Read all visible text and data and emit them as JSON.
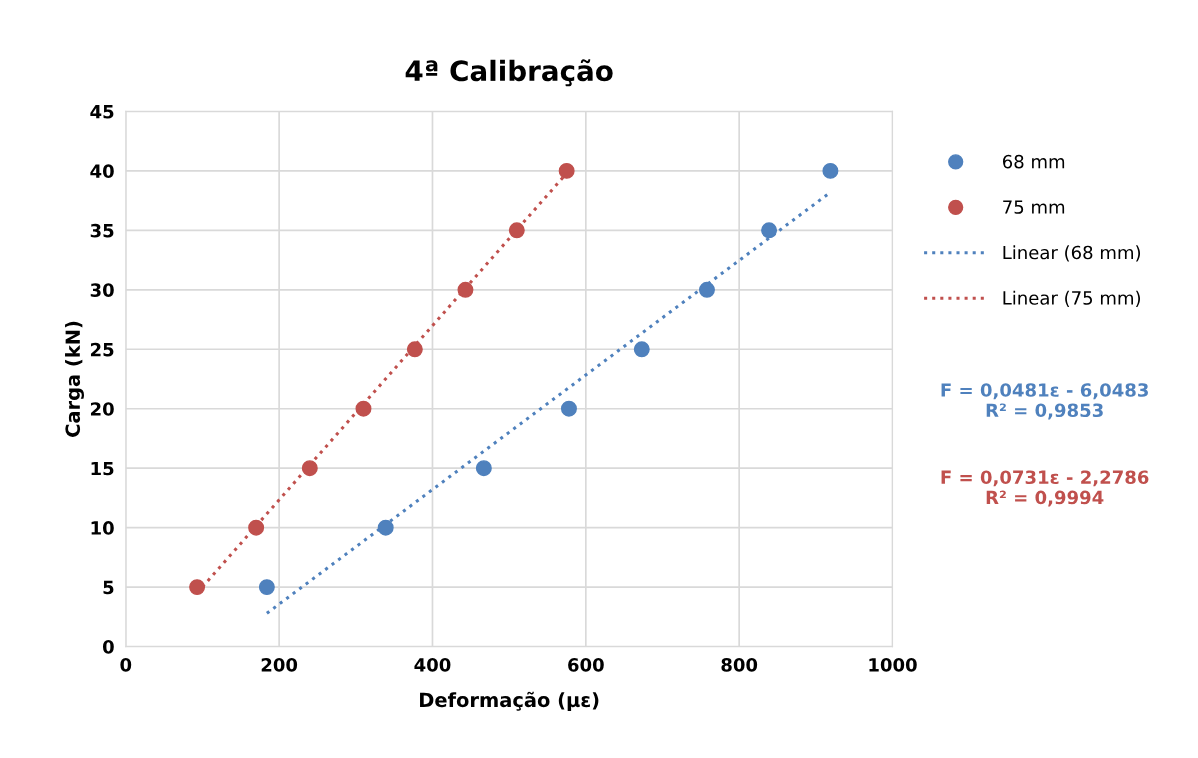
{
  "chart_data": {
    "type": "scatter",
    "title": "4ª Calibração",
    "xlabel": "Deformação (με)",
    "ylabel": "Carga (kN)",
    "xlim": [
      0,
      1000
    ],
    "xticks": [
      0,
      200,
      400,
      600,
      800,
      1000
    ],
    "ylim": [
      0,
      45
    ],
    "yticks": [
      0,
      5,
      10,
      15,
      20,
      25,
      30,
      35,
      40,
      45
    ],
    "grid": true,
    "legend": "right",
    "series": [
      {
        "name": "68 mm",
        "marker": "circle",
        "color": "#4f81bd",
        "x": [
          184,
          339,
          467,
          578,
          673,
          758,
          839,
          919
        ],
        "values": [
          5,
          10,
          15,
          20,
          25,
          30,
          35,
          40
        ]
      },
      {
        "name": "75 mm",
        "marker": "circle",
        "color": "#c0504d",
        "x": [
          93,
          170,
          240,
          310,
          377,
          443,
          510,
          575
        ],
        "values": [
          5,
          10,
          15,
          20,
          25,
          30,
          35,
          40
        ]
      },
      {
        "name": "Linear (68 mm)",
        "type": "line",
        "marker": "none",
        "line_style": "dotted",
        "color": "#4f81bd",
        "x": [
          184,
          919
        ],
        "values": [
          2.8,
          38.2
        ]
      },
      {
        "name": "Linear (75 mm)",
        "type": "line",
        "marker": "none",
        "line_style": "dotted",
        "color": "#c0504d",
        "x": [
          93,
          575
        ],
        "values": [
          4.5,
          39.8
        ]
      }
    ],
    "annotations": [
      "F = 0,0481ε - 6,0483\nR² = 0,9853",
      "F = 0,0731ε - 2,2786\nR² = 0,9994"
    ]
  }
}
